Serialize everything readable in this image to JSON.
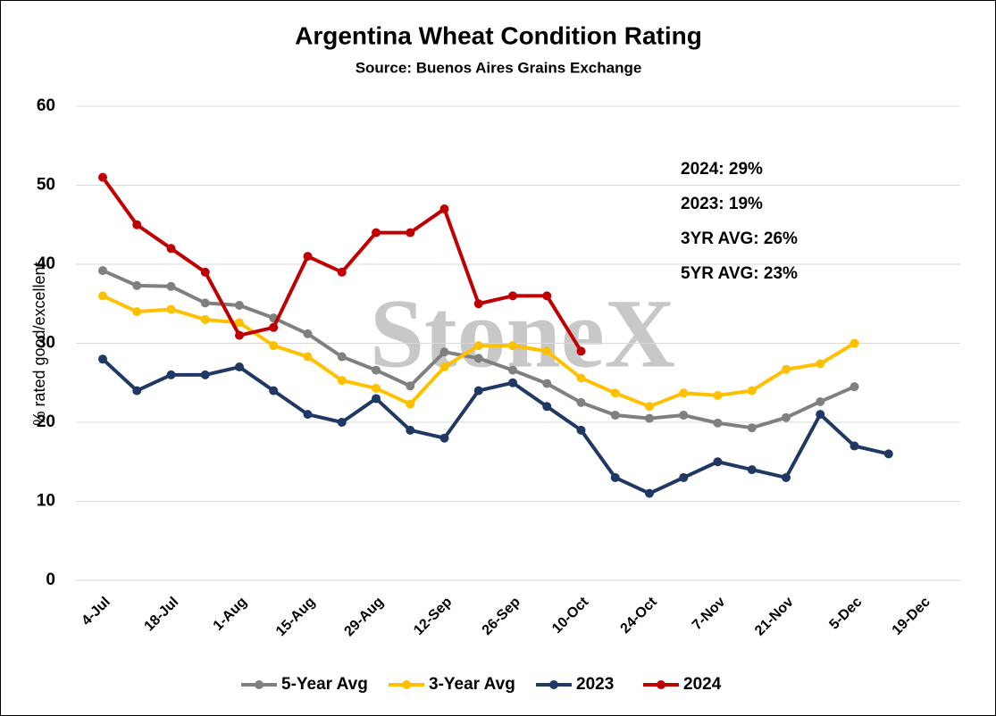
{
  "chart_data": {
    "type": "line",
    "title": "Argentina Wheat Condition Rating",
    "subtitle": "Source: Buenos Aires Grains Exchange",
    "y_label": "% rated good/excellent",
    "watermark": "StoneX",
    "categories": [
      "4-Jul",
      null,
      "18-Jul",
      null,
      "1-Aug",
      null,
      "15-Aug",
      null,
      "29-Aug",
      null,
      "12-Sep",
      null,
      "26-Sep",
      null,
      "10-Oct",
      null,
      "24-Oct",
      null,
      "7-Nov",
      null,
      "21-Nov",
      null,
      "5-Dec",
      null,
      "19-Dec"
    ],
    "series": [
      {
        "name": "5-Year Avg",
        "color": "#808080",
        "values": [
          39.2,
          37.3,
          37.2,
          35.1,
          34.8,
          33.2,
          31.2,
          28.3,
          26.6,
          24.6,
          28.9,
          28.1,
          26.6,
          24.9,
          22.5,
          20.9,
          20.5,
          20.9,
          19.9,
          19.3,
          20.6,
          22.6,
          24.5,
          null,
          null
        ]
      },
      {
        "name": "3-Year Avg",
        "color": "#ffc000",
        "values": [
          36,
          34,
          34.3,
          33,
          32.6,
          29.7,
          28.3,
          25.3,
          24.3,
          22.3,
          27,
          29.7,
          29.7,
          29,
          25.6,
          23.7,
          22,
          23.7,
          23.4,
          24,
          26.7,
          27.4,
          30,
          null,
          null
        ]
      },
      {
        "name": "2023",
        "color": "#1f3864",
        "values": [
          28,
          24,
          26,
          26,
          27,
          24,
          21,
          20,
          23,
          19,
          18,
          24,
          25,
          22,
          19,
          13,
          11,
          13,
          15,
          14,
          13,
          21,
          17,
          16,
          null
        ]
      },
      {
        "name": "2024",
        "color": "#c00000",
        "values": [
          51,
          45,
          42,
          39,
          31,
          32,
          41,
          39,
          44,
          44,
          47,
          35,
          36,
          36,
          29,
          null,
          null,
          null,
          null,
          null,
          null,
          null,
          null,
          null,
          null
        ]
      }
    ],
    "annotations": [
      "2024: 29%",
      "2023: 19%",
      "3YR AVG: 26%",
      "5YR AVG: 23%"
    ],
    "ylim": [
      0,
      60
    ],
    "yticks": [
      0,
      10,
      20,
      30,
      40,
      50,
      60
    ],
    "grid": true
  }
}
